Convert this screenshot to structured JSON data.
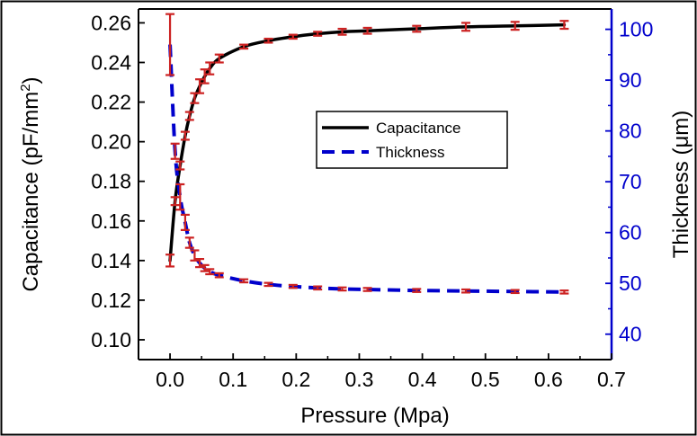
{
  "chart_data": {
    "type": "line",
    "xlabel": "Pressure (Mpa)",
    "ylabel_left": {
      "main": "Capacitance (pF/mm",
      "sup": "2",
      "end": ")"
    },
    "ylabel_right": "Thickness (μm)",
    "xlim": [
      -0.05,
      0.7
    ],
    "ylim_left": [
      0.09,
      0.267
    ],
    "ylim_right": [
      35,
      104
    ],
    "x_ticks": [
      0.0,
      0.1,
      0.2,
      0.3,
      0.4,
      0.5,
      0.6,
      0.7
    ],
    "x_tick_labels": [
      "0.0",
      "0.1",
      "0.2",
      "0.3",
      "0.4",
      "0.5",
      "0.6",
      "0.7"
    ],
    "y_left_ticks": [
      0.1,
      0.12,
      0.14,
      0.16,
      0.18,
      0.2,
      0.22,
      0.24,
      0.26
    ],
    "y_left_tick_labels": [
      "0.10",
      "0.12",
      "0.14",
      "0.16",
      "0.18",
      "0.20",
      "0.22",
      "0.24",
      "0.26"
    ],
    "y_right_ticks": [
      40,
      50,
      60,
      70,
      80,
      90,
      100
    ],
    "y_right_tick_labels": [
      "40",
      "50",
      "60",
      "70",
      "80",
      "90",
      "100"
    ],
    "grid": false,
    "legend_position": "upper-center",
    "colors": {
      "capacitance": "#000000",
      "thickness": "#0000cc",
      "error_bars": "#cc2222",
      "right_axis": "#0000cc"
    },
    "series": [
      {
        "name": "Capacitance",
        "axis": "left",
        "style": "solid",
        "x": [
          0.0,
          0.008,
          0.016,
          0.024,
          0.031,
          0.039,
          0.047,
          0.055,
          0.063,
          0.078,
          0.117,
          0.156,
          0.195,
          0.234,
          0.273,
          0.313,
          0.391,
          0.469,
          0.547,
          0.625
        ],
        "y": [
          0.14,
          0.17,
          0.188,
          0.203,
          0.213,
          0.222,
          0.228,
          0.233,
          0.237,
          0.242,
          0.248,
          0.251,
          0.253,
          0.2545,
          0.2555,
          0.256,
          0.257,
          0.258,
          0.2585,
          0.259
        ],
        "error": [
          0.003,
          0.002,
          0.002,
          0.002,
          0.002,
          0.0025,
          0.0035,
          0.0035,
          0.003,
          0.002,
          0.001,
          0.001,
          0.001,
          0.001,
          0.0015,
          0.0015,
          0.0015,
          0.002,
          0.002,
          0.002
        ]
      },
      {
        "name": "Thickness",
        "axis": "right",
        "style": "dashed",
        "x": [
          0.0,
          0.008,
          0.016,
          0.024,
          0.031,
          0.039,
          0.047,
          0.055,
          0.063,
          0.078,
          0.117,
          0.156,
          0.195,
          0.234,
          0.273,
          0.313,
          0.391,
          0.469,
          0.547,
          0.625
        ],
        "y": [
          97.0,
          76.0,
          67.0,
          62.0,
          58.0,
          55.5,
          54.0,
          53.0,
          52.3,
          51.6,
          50.5,
          49.8,
          49.4,
          49.1,
          48.9,
          48.8,
          48.6,
          48.5,
          48.4,
          48.3
        ],
        "error": [
          6.0,
          1.5,
          2.5,
          1.5,
          1.0,
          1.0,
          0.8,
          0.6,
          0.5,
          0.4,
          0.3,
          0.3,
          0.3,
          0.3,
          0.3,
          0.3,
          0.3,
          0.3,
          0.3,
          0.3
        ]
      }
    ]
  }
}
